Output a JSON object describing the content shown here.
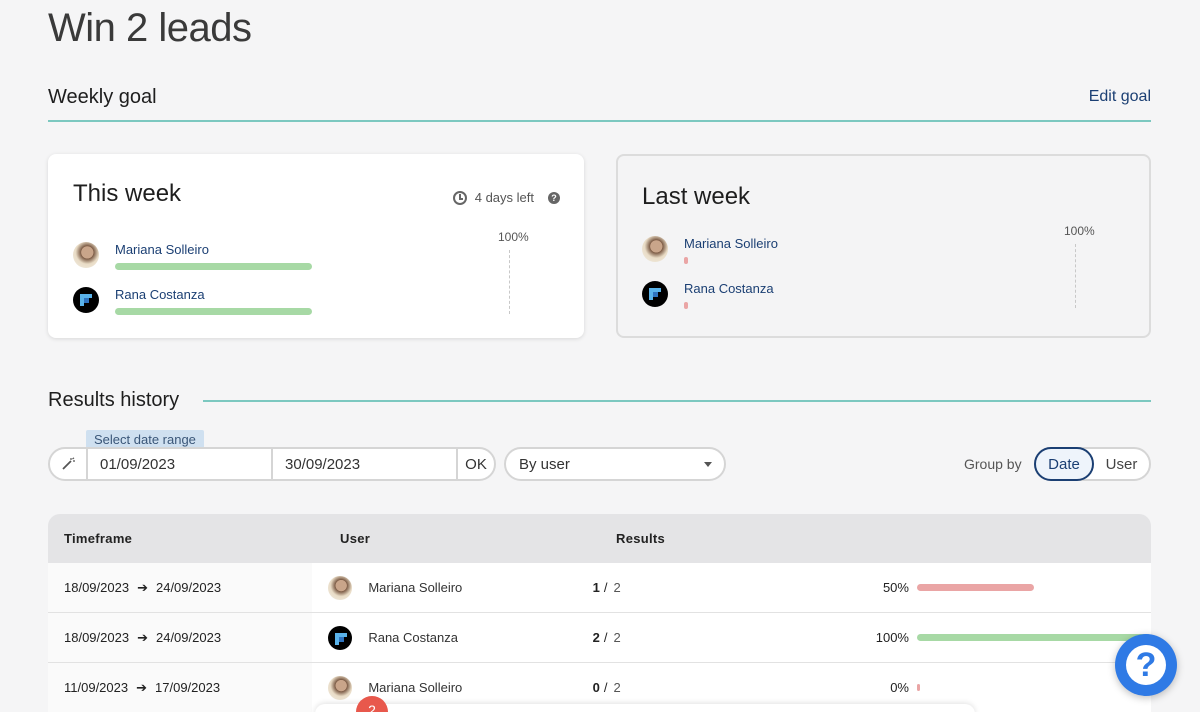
{
  "page": {
    "title": "Win 2 leads"
  },
  "weekly_goal": {
    "title": "Weekly goal",
    "edit_label": "Edit goal"
  },
  "this_week": {
    "title": "This week",
    "days_left": "4 days left",
    "help_glyph": "?",
    "max_label": "100%",
    "members": [
      {
        "name": "Mariana Solleiro",
        "avatar": "photo",
        "progress": 1.0,
        "bar_color": "#a7d9a5"
      },
      {
        "name": "Rana Costanza",
        "avatar": "logo",
        "progress": 1.0,
        "bar_color": "#a7d9a5"
      }
    ]
  },
  "last_week": {
    "title": "Last week",
    "max_label": "100%",
    "members": [
      {
        "name": "Mariana Solleiro",
        "avatar": "photo",
        "progress": 0.0,
        "bar_color": "#eaa5a5"
      },
      {
        "name": "Rana Costanza",
        "avatar": "logo",
        "progress": 0.0,
        "bar_color": "#eaa5a5"
      }
    ]
  },
  "history": {
    "title": "Results history",
    "range_tag": "Select date range",
    "date_from": "01/09/2023",
    "date_to": "30/09/2023",
    "ok_label": "OK",
    "user_filter": "By user",
    "group_by_label": "Group by",
    "group_options": [
      "Date",
      "User"
    ],
    "group_selected": "Date",
    "columns": [
      "Timeframe",
      "User",
      "Results",
      ""
    ],
    "rows": [
      {
        "from": "18/09/2023",
        "to": "24/09/2023",
        "user": "Mariana Solleiro",
        "avatar": "photo",
        "achieved": "1",
        "target": "2",
        "pct_label": "50%",
        "pct": 0.5,
        "color": "#eaa5a5"
      },
      {
        "from": "18/09/2023",
        "to": "24/09/2023",
        "user": "Rana Costanza",
        "avatar": "logo",
        "achieved": "2",
        "target": "2",
        "pct_label": "100%",
        "pct": 1.0,
        "color": "#a7d9a5"
      },
      {
        "from": "11/09/2023",
        "to": "17/09/2023",
        "user": "Mariana Solleiro",
        "avatar": "photo",
        "achieved": "0",
        "target": "2",
        "pct_label": "0%",
        "pct": 0.0,
        "color": "#eaa5a5"
      }
    ]
  },
  "help_button": {
    "glyph": "?"
  },
  "notification": {
    "count": "2"
  },
  "colors": {
    "accent": "#7cc8c0",
    "link": "#1b3f73",
    "fab": "#2f7ae5",
    "badge": "#e8584c"
  }
}
